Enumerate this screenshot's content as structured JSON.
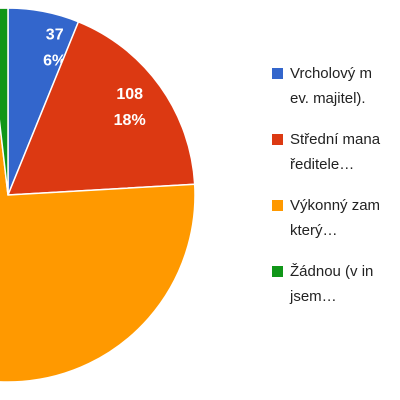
{
  "chart_data": {
    "type": "pie",
    "categories": [
      [
        "Vrcholový m",
        "ev. majitel)."
      ],
      [
        "Střední mana",
        "ředitele…"
      ],
      [
        "Výkonný zam",
        "který…"
      ],
      [
        "Žádnou (v in",
        "jsem…"
      ]
    ],
    "values": [
      37,
      108,
      446,
      11
    ],
    "percent_labels": [
      "6%",
      "18%",
      null,
      null
    ],
    "colors": [
      "#3366cc",
      "#dc3912",
      "#ff9900",
      "#109618"
    ]
  }
}
